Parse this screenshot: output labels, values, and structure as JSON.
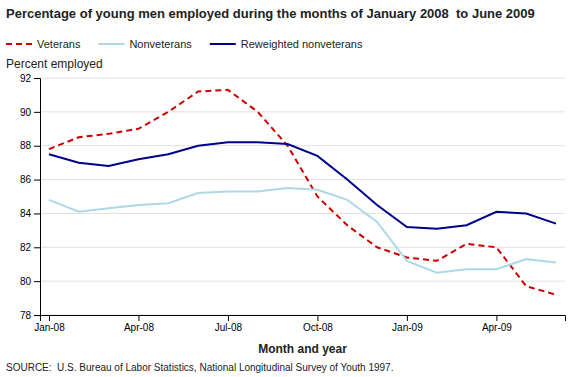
{
  "chart_data": {
    "type": "line",
    "title": "Percentage of young men employed during the months of January 2008  to June 2009",
    "ylabel": "Percent employed",
    "xlabel": "Month and year",
    "source": "SOURCE:  U.S. Bureau of Labor Statistics, National Longitudinal Survey of Youth 1997.",
    "categories": [
      "Jan-08",
      null,
      null,
      "Apr-08",
      null,
      null,
      "Jul-08",
      null,
      null,
      "Oct-08",
      null,
      null,
      "Jan-09",
      null,
      null,
      "Apr-09",
      null,
      null
    ],
    "series": [
      {
        "name": "Veterans",
        "color": "#cc0000",
        "line_style": "dashed",
        "values": [
          87.8,
          88.5,
          88.7,
          89.0,
          90.0,
          91.2,
          91.3,
          90.0,
          88.0,
          85.0,
          83.3,
          82.0,
          81.4,
          81.2,
          82.2,
          82.0,
          79.7,
          79.2
        ]
      },
      {
        "name": "Nonveterans",
        "color": "#add8e6",
        "line_style": "solid",
        "values": [
          84.8,
          84.1,
          84.3,
          84.5,
          84.6,
          85.2,
          85.3,
          85.3,
          85.5,
          85.4,
          84.8,
          83.5,
          81.2,
          80.5,
          80.7,
          80.7,
          81.3,
          81.1
        ]
      },
      {
        "name": "Reweighted nonveterans",
        "color": "#00008b",
        "line_style": "solid",
        "values": [
          87.5,
          87.0,
          86.8,
          87.2,
          87.5,
          88.0,
          88.2,
          88.2,
          88.1,
          87.4,
          86.0,
          84.5,
          83.2,
          83.1,
          83.3,
          84.1,
          84.0,
          83.4
        ]
      }
    ],
    "ylim": [
      78,
      92
    ],
    "yticks": [
      78,
      80,
      82,
      84,
      86,
      88,
      90,
      92
    ],
    "grid": true,
    "legend": "top"
  }
}
